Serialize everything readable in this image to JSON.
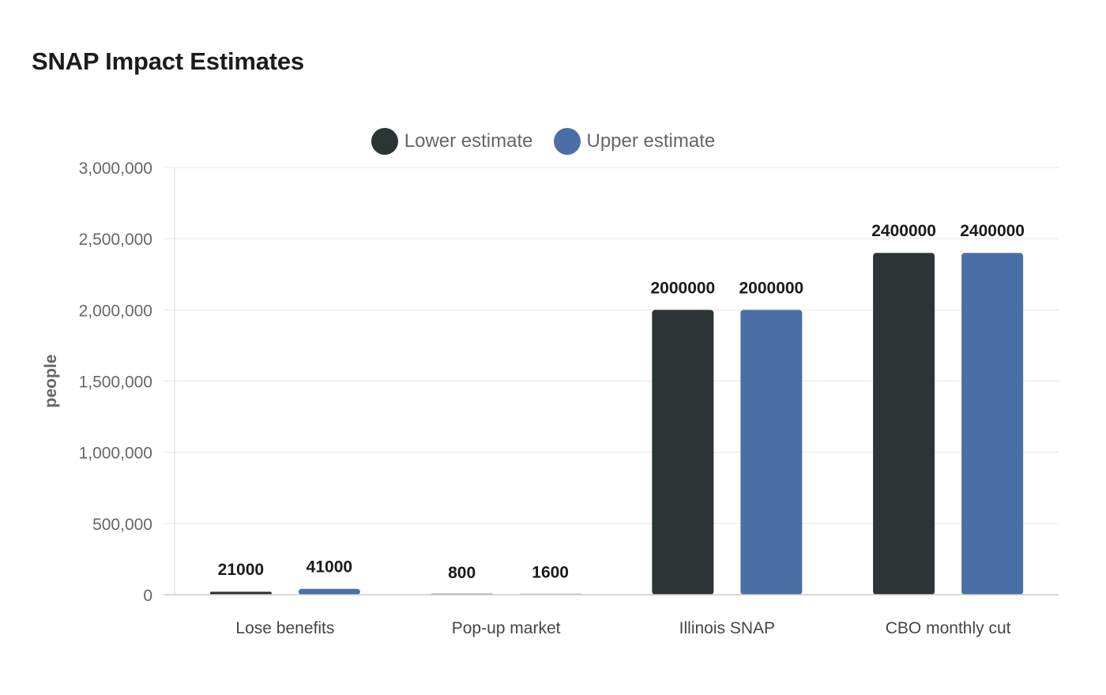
{
  "chart_data": {
    "type": "bar",
    "title": "SNAP Impact Estimates",
    "xlabel": "",
    "ylabel": "people",
    "categories": [
      "Lose benefits",
      "Pop-up market",
      "Illinois SNAP",
      "CBO monthly cut"
    ],
    "series": [
      {
        "name": "Lower estimate",
        "color": "#2d3436",
        "values": [
          21000,
          800,
          2000000,
          2400000
        ]
      },
      {
        "name": "Upper estimate",
        "color": "#4a6fa5",
        "values": [
          41000,
          1600,
          2000000,
          2400000
        ]
      }
    ],
    "ylim": [
      0,
      3000000
    ],
    "yticks": [
      0,
      500000,
      1000000,
      1500000,
      2000000,
      2500000,
      3000000
    ],
    "ytick_labels": [
      "0",
      "500,000",
      "1,000,000",
      "1,500,000",
      "2,000,000",
      "2,500,000",
      "3,000,000"
    ],
    "data_labels": [
      [
        "21000",
        "800",
        "2000000",
        "2400000"
      ],
      [
        "41000",
        "1600",
        "2000000",
        "2400000"
      ]
    ],
    "grid": true,
    "legend_position": "top-center"
  }
}
